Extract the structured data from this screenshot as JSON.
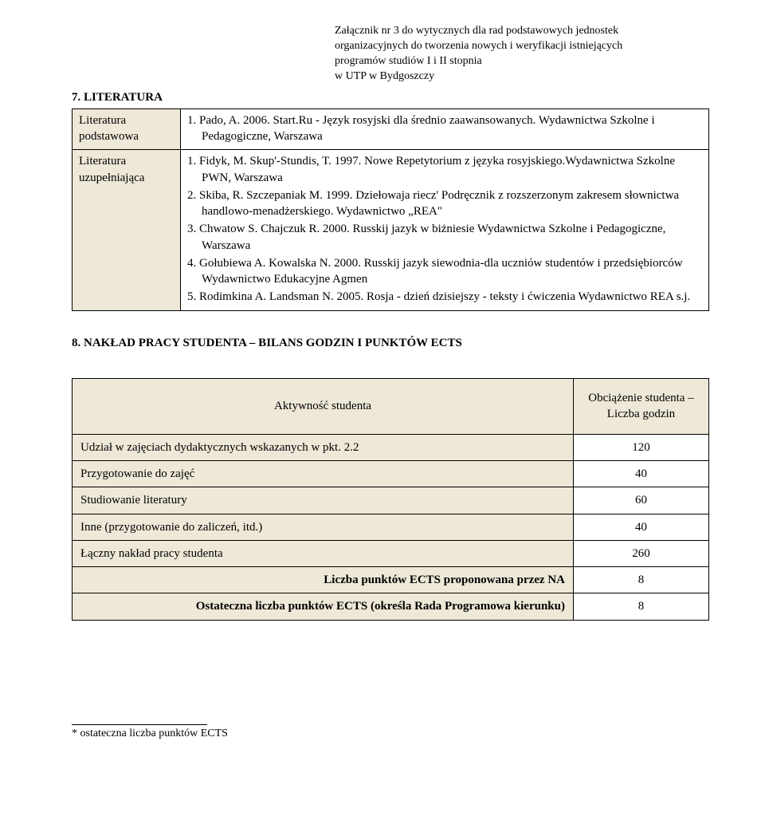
{
  "header_note": {
    "line1": "Załącznik nr 3 do wytycznych dla rad podstawowych jednostek",
    "line2": "organizacyjnych do tworzenia nowych i weryfikacji istniejących",
    "line3": "programów studiów I i II stopnia",
    "line4": "w UTP w Bydgoszczy"
  },
  "section7": {
    "title": "7. LITERATURA",
    "rows": [
      {
        "label": "Literatura podstawowa",
        "items": [
          "1.  Pado, A. 2006. Start.Ru - Język rosyjski dla średnio zaawansowanych. Wydawnictwa Szkolne i Pedagogiczne, Warszawa"
        ]
      },
      {
        "label": "Literatura uzupełniająca",
        "items": [
          "1.  Fidyk, M. Skup'-Stundis, T. 1997. Nowe Repetytorium z języka rosyjskiego.Wydawnictwa Szkolne PWN, Warszawa",
          "2.  Skiba, R. Szczepaniak M. 1999. Dziełowaja riecz' Podręcznik z rozszerzonym zakresem słownictwa handlowo-menadżerskiego. Wydawnictwo „REA\"",
          "3.  Chwatow S. Chajczuk R. 2000. Russkij jazyk w biżniesie Wydawnictwa Szkolne i Pedagogiczne, Warszawa",
          "4.  Gołubiewa A. Kowalska N. 2000. Russkij jazyk siewodnia-dla uczniów studentów i przedsiębiorców Wydawnictwo Edukacyjne Agmen",
          "5.  Rodimkina A. Landsman N. 2005. Rosja - dzień dzisiejszy - teksty i ćwiczenia Wydawnictwo REA s.j."
        ]
      }
    ]
  },
  "section8": {
    "title": "8. NAKŁAD PRACY STUDENTA – BILANS GODZIN I PUNKTÓW ECTS",
    "head": {
      "activity": "Aktywność studenta",
      "load1": "Obciążenie studenta –",
      "load2": "Liczba godzin"
    },
    "rows": [
      {
        "label": "Udział w zajęciach dydaktycznych wskazanych w pkt. 2.2",
        "value": "120"
      },
      {
        "label": "Przygotowanie do zajęć",
        "value": "40"
      },
      {
        "label": "Studiowanie literatury",
        "value": "60"
      },
      {
        "label": "Inne (przygotowanie do zaliczeń, itd.)",
        "value": "40"
      },
      {
        "label": "Łączny nakład pracy studenta",
        "value": "260"
      }
    ],
    "proposed": {
      "label": "Liczba punktów ECTS proponowana przez NA",
      "value": "8"
    },
    "final": {
      "label": "Ostateczna liczba punktów ECTS (określa Rada Programowa kierunku)",
      "value": "8"
    }
  },
  "footer": {
    "marker": "*",
    "text": " ostateczna liczba punktów ECTS"
  },
  "colors": {
    "shaded": "#eee8d8",
    "border": "#000000",
    "text": "#000000",
    "bg": "#ffffff"
  }
}
